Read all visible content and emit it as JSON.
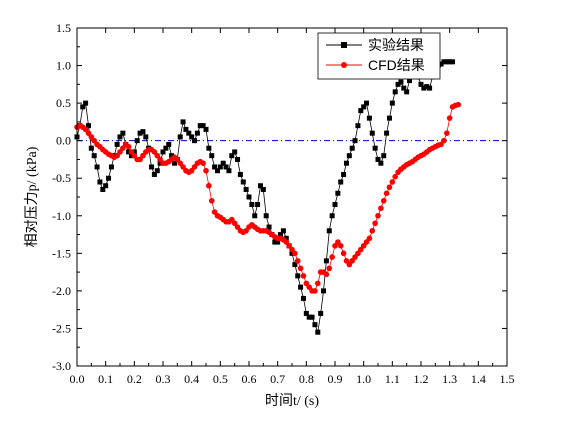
{
  "chart_data": {
    "type": "line",
    "xlabel": "时间t/ (s)",
    "ylabel": "相对压力p/ (kPa)",
    "xlim": [
      0.0,
      1.5
    ],
    "ylim": [
      -3.0,
      1.5
    ],
    "x_ticks": [
      "0.0",
      "0.1",
      "0.2",
      "0.3",
      "0.4",
      "0.5",
      "0.6",
      "0.7",
      "0.8",
      "0.9",
      "1.0",
      "1.1",
      "1.2",
      "1.3",
      "1.4",
      "1.5"
    ],
    "y_ticks": [
      "1.5",
      "1.0",
      "0.5",
      "0.0",
      "-0.5",
      "-1.0",
      "-1.5",
      "-2.0",
      "-2.5",
      "-3.0"
    ],
    "grid": false,
    "legend_position": "top-right",
    "reference_line": {
      "y": 0.0,
      "style": "dash-dot",
      "color": "#0000cc"
    },
    "series": [
      {
        "name": "实验结果",
        "color": "#000000",
        "marker": "square",
        "x": [
          0.0,
          0.01,
          0.02,
          0.03,
          0.04,
          0.05,
          0.06,
          0.07,
          0.08,
          0.09,
          0.1,
          0.11,
          0.12,
          0.13,
          0.14,
          0.15,
          0.16,
          0.17,
          0.18,
          0.19,
          0.2,
          0.21,
          0.22,
          0.23,
          0.24,
          0.25,
          0.26,
          0.27,
          0.28,
          0.29,
          0.3,
          0.31,
          0.32,
          0.33,
          0.34,
          0.35,
          0.36,
          0.37,
          0.38,
          0.39,
          0.4,
          0.41,
          0.42,
          0.43,
          0.44,
          0.45,
          0.46,
          0.47,
          0.48,
          0.49,
          0.5,
          0.51,
          0.52,
          0.53,
          0.54,
          0.55,
          0.56,
          0.57,
          0.58,
          0.59,
          0.6,
          0.61,
          0.62,
          0.63,
          0.64,
          0.65,
          0.66,
          0.67,
          0.68,
          0.69,
          0.7,
          0.71,
          0.72,
          0.73,
          0.74,
          0.75,
          0.76,
          0.77,
          0.78,
          0.79,
          0.8,
          0.81,
          0.82,
          0.83,
          0.84,
          0.85,
          0.86,
          0.87,
          0.88,
          0.89,
          0.9,
          0.91,
          0.92,
          0.93,
          0.94,
          0.95,
          0.96,
          0.97,
          0.98,
          0.99,
          1.0,
          1.01,
          1.02,
          1.03,
          1.04,
          1.05,
          1.06,
          1.07,
          1.08,
          1.09,
          1.1,
          1.11,
          1.12,
          1.13,
          1.14,
          1.15,
          1.16,
          1.17,
          1.18,
          1.19,
          1.2,
          1.21,
          1.22,
          1.23,
          1.24,
          1.25,
          1.26,
          1.27,
          1.28,
          1.29,
          1.3,
          1.31
        ],
        "y": [
          0.05,
          0.2,
          0.45,
          0.5,
          0.2,
          -0.1,
          -0.2,
          -0.35,
          -0.55,
          -0.65,
          -0.6,
          -0.5,
          -0.35,
          -0.2,
          -0.05,
          0.05,
          0.1,
          -0.05,
          -0.15,
          -0.2,
          -0.15,
          0.0,
          0.1,
          0.12,
          0.05,
          -0.1,
          -0.35,
          -0.45,
          -0.4,
          -0.3,
          -0.15,
          -0.1,
          -0.05,
          -0.2,
          -0.3,
          -0.25,
          0.05,
          0.25,
          0.15,
          0.1,
          0.05,
          0.0,
          0.1,
          0.2,
          0.2,
          0.15,
          -0.1,
          -0.2,
          -0.35,
          -0.4,
          -0.35,
          -0.3,
          -0.35,
          -0.4,
          -0.2,
          -0.15,
          -0.25,
          -0.45,
          -0.55,
          -0.65,
          -0.75,
          -0.85,
          -1.0,
          -0.85,
          -0.6,
          -0.65,
          -1.0,
          -1.15,
          -1.25,
          -1.35,
          -1.35,
          -1.25,
          -1.2,
          -1.3,
          -1.4,
          -1.5,
          -1.65,
          -1.8,
          -1.95,
          -2.1,
          -2.3,
          -2.35,
          -2.35,
          -2.45,
          -2.55,
          -2.3,
          -2.0,
          -1.6,
          -1.2,
          -1.0,
          -0.85,
          -0.7,
          -0.55,
          -0.45,
          -0.3,
          -0.2,
          -0.1,
          0.0,
          0.2,
          0.4,
          0.45,
          0.5,
          0.3,
          0.1,
          -0.1,
          -0.25,
          -0.3,
          -0.2,
          0.1,
          0.3,
          0.5,
          0.65,
          0.75,
          0.78,
          0.7,
          0.65,
          0.8,
          1.05,
          0.9,
          0.85,
          0.75,
          0.7,
          0.72,
          0.7,
          0.85,
          0.95,
          1.0,
          1.02,
          1.05,
          1.05,
          1.05,
          1.05
        ]
      },
      {
        "name": "CFD结果",
        "color": "#ff0000",
        "marker": "circle",
        "x": [
          0.0,
          0.01,
          0.02,
          0.03,
          0.04,
          0.05,
          0.06,
          0.07,
          0.08,
          0.09,
          0.1,
          0.11,
          0.12,
          0.13,
          0.14,
          0.15,
          0.16,
          0.17,
          0.18,
          0.19,
          0.2,
          0.21,
          0.22,
          0.23,
          0.24,
          0.25,
          0.26,
          0.27,
          0.28,
          0.29,
          0.3,
          0.31,
          0.32,
          0.33,
          0.34,
          0.35,
          0.36,
          0.37,
          0.38,
          0.39,
          0.4,
          0.41,
          0.42,
          0.43,
          0.44,
          0.45,
          0.46,
          0.47,
          0.48,
          0.49,
          0.5,
          0.51,
          0.52,
          0.53,
          0.54,
          0.55,
          0.56,
          0.57,
          0.58,
          0.59,
          0.6,
          0.61,
          0.62,
          0.63,
          0.64,
          0.65,
          0.66,
          0.67,
          0.68,
          0.69,
          0.7,
          0.71,
          0.72,
          0.73,
          0.74,
          0.75,
          0.76,
          0.77,
          0.78,
          0.79,
          0.8,
          0.81,
          0.82,
          0.83,
          0.84,
          0.85,
          0.86,
          0.87,
          0.88,
          0.89,
          0.9,
          0.91,
          0.92,
          0.93,
          0.94,
          0.95,
          0.96,
          0.97,
          0.98,
          0.99,
          1.0,
          1.01,
          1.02,
          1.03,
          1.04,
          1.05,
          1.06,
          1.07,
          1.08,
          1.09,
          1.1,
          1.11,
          1.12,
          1.13,
          1.14,
          1.15,
          1.16,
          1.17,
          1.18,
          1.19,
          1.2,
          1.21,
          1.22,
          1.23,
          1.24,
          1.25,
          1.26,
          1.27,
          1.28,
          1.29,
          1.3,
          1.31,
          1.32,
          1.33
        ],
        "y": [
          0.18,
          0.2,
          0.18,
          0.15,
          0.1,
          0.05,
          0.0,
          -0.05,
          -0.08,
          -0.12,
          -0.15,
          -0.18,
          -0.2,
          -0.22,
          -0.2,
          -0.15,
          -0.1,
          -0.05,
          -0.08,
          -0.15,
          -0.2,
          -0.25,
          -0.25,
          -0.2,
          -0.15,
          -0.12,
          -0.12,
          -0.15,
          -0.2,
          -0.25,
          -0.3,
          -0.3,
          -0.28,
          -0.25,
          -0.22,
          -0.25,
          -0.3,
          -0.35,
          -0.4,
          -0.42,
          -0.4,
          -0.35,
          -0.3,
          -0.28,
          -0.3,
          -0.4,
          -0.6,
          -0.8,
          -0.95,
          -1.0,
          -1.02,
          -1.05,
          -1.08,
          -1.08,
          -1.05,
          -1.1,
          -1.15,
          -1.2,
          -1.22,
          -1.2,
          -1.15,
          -1.12,
          -1.15,
          -1.18,
          -1.2,
          -1.2,
          -1.2,
          -1.22,
          -1.25,
          -1.28,
          -1.3,
          -1.3,
          -1.32,
          -1.35,
          -1.4,
          -1.45,
          -1.5,
          -1.6,
          -1.7,
          -1.8,
          -1.9,
          -1.95,
          -2.0,
          -2.0,
          -1.9,
          -1.75,
          -1.75,
          -1.78,
          -1.7,
          -1.55,
          -1.4,
          -1.35,
          -1.4,
          -1.5,
          -1.6,
          -1.65,
          -1.6,
          -1.55,
          -1.5,
          -1.45,
          -1.4,
          -1.35,
          -1.3,
          -1.2,
          -1.1,
          -1.0,
          -0.9,
          -0.8,
          -0.7,
          -0.62,
          -0.55,
          -0.48,
          -0.42,
          -0.38,
          -0.35,
          -0.32,
          -0.3,
          -0.28,
          -0.25,
          -0.22,
          -0.2,
          -0.18,
          -0.15,
          -0.12,
          -0.1,
          -0.08,
          -0.06,
          -0.05,
          0.0,
          0.1,
          0.3,
          0.45,
          0.47,
          0.48
        ]
      }
    ]
  }
}
